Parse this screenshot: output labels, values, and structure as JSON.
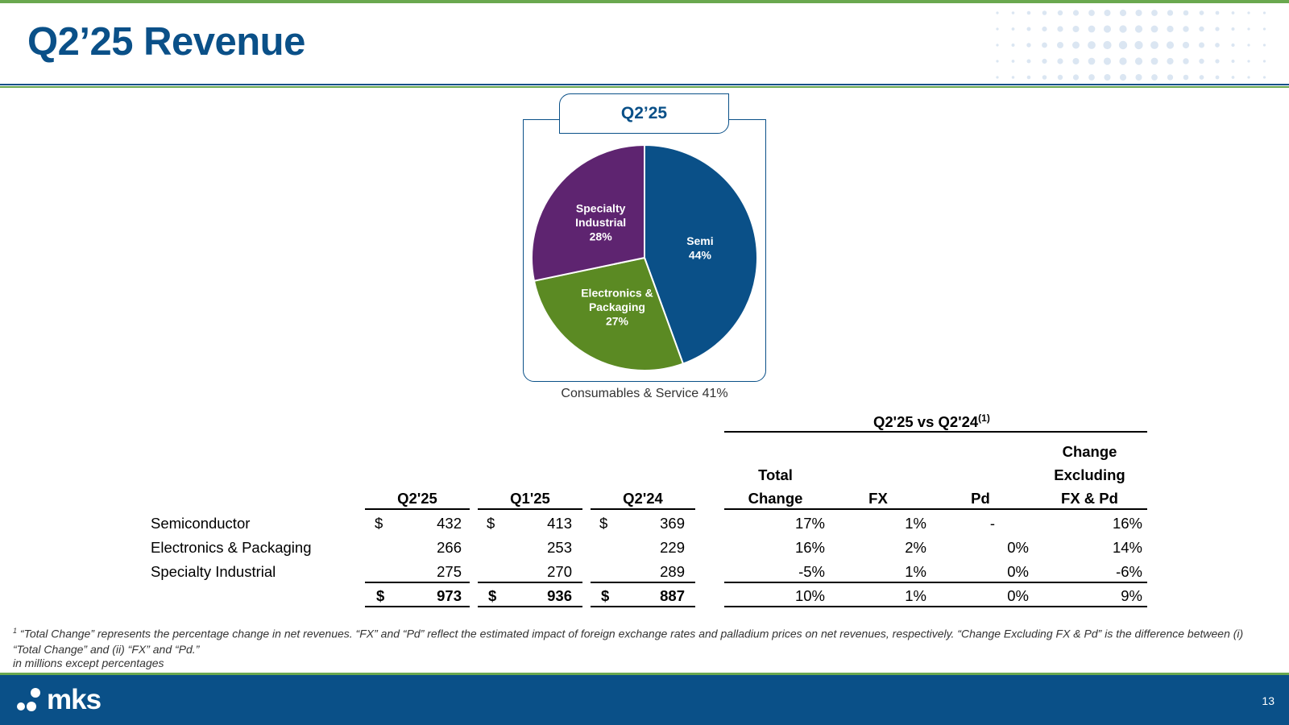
{
  "slide": {
    "title": "Q2’25 Revenue",
    "page_number": "13",
    "logo_text": "mks",
    "colors": {
      "brand_blue": "#0a5088",
      "brand_green": "#6aa84f",
      "purple": "#5e2470"
    }
  },
  "pie": {
    "tab_label": "Q2’25",
    "caption": "Consumables & Service 41%"
  },
  "chart_data": {
    "type": "pie",
    "title": "Q2’25",
    "slices": [
      {
        "name": "Semi",
        "value": 44,
        "label_lines": [
          "Semi",
          "44%"
        ],
        "color": "#0a5088"
      },
      {
        "name": "Electronics & Packaging",
        "value": 27,
        "label_lines": [
          "Electronics &",
          "Packaging",
          "27%"
        ],
        "color": "#5b8a23"
      },
      {
        "name": "Specialty Industrial",
        "value": 28,
        "label_lines": [
          "Specialty",
          "Industrial",
          "28%"
        ],
        "color": "#5e2470"
      }
    ]
  },
  "table": {
    "group_header": "Q2'25 vs Q2'24",
    "group_header_sup": "(1)",
    "columns": {
      "q225": "Q2'25",
      "q125": "Q1'25",
      "q224": "Q2'24",
      "total_change": [
        "Total",
        "Change"
      ],
      "fx": "FX",
      "pd": "Pd",
      "change_excl": [
        "Change",
        "Excluding",
        "FX & Pd"
      ]
    },
    "rows": [
      {
        "label": "Semiconductor",
        "q225": "432",
        "q125": "413",
        "q224": "369",
        "total_change": "17%",
        "fx": "1%",
        "pd": "-",
        "change_excl": "16%",
        "show_dollar": true
      },
      {
        "label": "Electronics & Packaging",
        "q225": "266",
        "q125": "253",
        "q224": "229",
        "total_change": "16%",
        "fx": "2%",
        "pd": "0%",
        "change_excl": "14%",
        "show_dollar": false
      },
      {
        "label": "Specialty Industrial",
        "q225": "275",
        "q125": "270",
        "q224": "289",
        "total_change": "-5%",
        "fx": "1%",
        "pd": "0%",
        "change_excl": "-6%",
        "show_dollar": false
      }
    ],
    "total": {
      "q225": "973",
      "q125": "936",
      "q224": "887",
      "total_change": "10%",
      "fx": "1%",
      "pd": "0%",
      "change_excl": "9%"
    },
    "dollar_sign": "$"
  },
  "footnote": {
    "marker": "1",
    "text": "“Total Change” represents the percentage change in net revenues. “FX” and “Pd” reflect the estimated impact of foreign exchange rates and palladium prices on net revenues, respectively. “Change Excluding FX & Pd” is the difference between (i) “Total Change” and (ii) “FX” and “Pd.”",
    "units": "in millions except percentages"
  }
}
